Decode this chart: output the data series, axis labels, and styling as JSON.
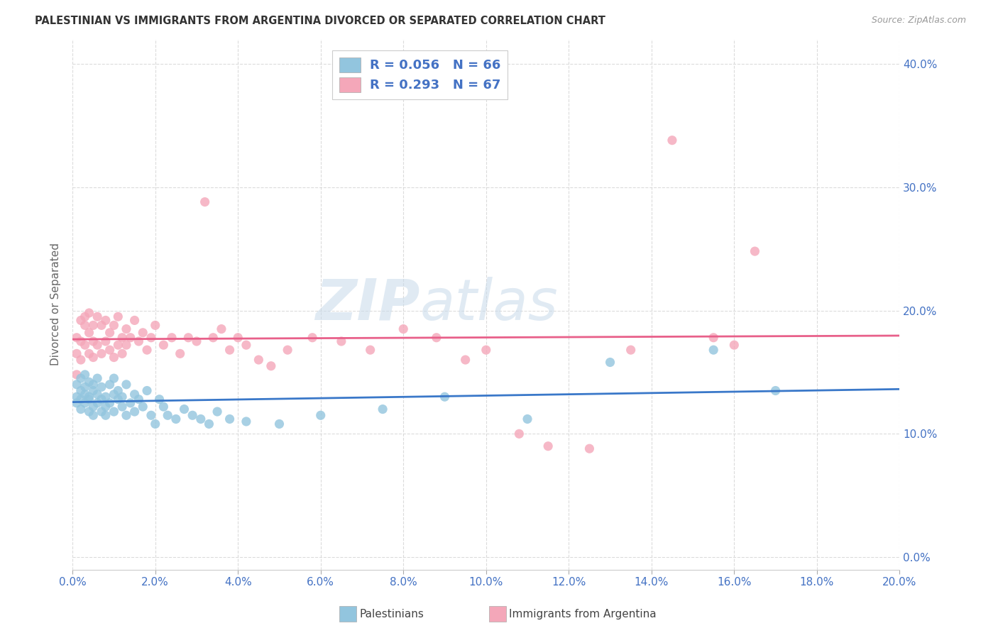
{
  "title": "PALESTINIAN VS IMMIGRANTS FROM ARGENTINA DIVORCED OR SEPARATED CORRELATION CHART",
  "source": "Source: ZipAtlas.com",
  "ylabel": "Divorced or Separated",
  "xlabel_palestinians": "Palestinians",
  "xlabel_argentina": "Immigrants from Argentina",
  "xlim": [
    0.0,
    0.2
  ],
  "ylim": [
    -0.01,
    0.42
  ],
  "xticks": [
    0.0,
    0.02,
    0.04,
    0.06,
    0.08,
    0.1,
    0.12,
    0.14,
    0.16,
    0.18,
    0.2
  ],
  "yticks": [
    0.0,
    0.1,
    0.2,
    0.3,
    0.4
  ],
  "legend_r1": "R = 0.056",
  "legend_n1": "N = 66",
  "legend_r2": "R = 0.293",
  "legend_n2": "N = 67",
  "color_blue": "#92c5de",
  "color_pink": "#f4a7b9",
  "line_color_blue": "#3a78c9",
  "line_color_pink": "#e8608a",
  "watermark": "ZIPatlas",
  "background": "#ffffff",
  "grid_color": "#d8d8d8",
  "palestinians_x": [
    0.001,
    0.001,
    0.001,
    0.002,
    0.002,
    0.002,
    0.002,
    0.003,
    0.003,
    0.003,
    0.003,
    0.004,
    0.004,
    0.004,
    0.004,
    0.005,
    0.005,
    0.005,
    0.005,
    0.006,
    0.006,
    0.006,
    0.007,
    0.007,
    0.007,
    0.008,
    0.008,
    0.008,
    0.009,
    0.009,
    0.01,
    0.01,
    0.01,
    0.011,
    0.011,
    0.012,
    0.012,
    0.013,
    0.013,
    0.014,
    0.015,
    0.015,
    0.016,
    0.017,
    0.018,
    0.019,
    0.02,
    0.021,
    0.022,
    0.023,
    0.025,
    0.027,
    0.029,
    0.031,
    0.033,
    0.035,
    0.038,
    0.042,
    0.05,
    0.06,
    0.075,
    0.09,
    0.11,
    0.13,
    0.155,
    0.17
  ],
  "palestinians_y": [
    0.14,
    0.13,
    0.125,
    0.135,
    0.128,
    0.145,
    0.12,
    0.138,
    0.132,
    0.125,
    0.148,
    0.13,
    0.118,
    0.142,
    0.128,
    0.135,
    0.122,
    0.14,
    0.115,
    0.132,
    0.125,
    0.145,
    0.118,
    0.138,
    0.128,
    0.13,
    0.122,
    0.115,
    0.14,
    0.125,
    0.132,
    0.118,
    0.145,
    0.128,
    0.135,
    0.122,
    0.13,
    0.115,
    0.14,
    0.125,
    0.132,
    0.118,
    0.128,
    0.122,
    0.135,
    0.115,
    0.108,
    0.128,
    0.122,
    0.115,
    0.112,
    0.12,
    0.115,
    0.112,
    0.108,
    0.118,
    0.112,
    0.11,
    0.108,
    0.115,
    0.12,
    0.13,
    0.112,
    0.158,
    0.168,
    0.135
  ],
  "argentina_x": [
    0.001,
    0.001,
    0.001,
    0.002,
    0.002,
    0.002,
    0.003,
    0.003,
    0.003,
    0.004,
    0.004,
    0.004,
    0.005,
    0.005,
    0.005,
    0.006,
    0.006,
    0.007,
    0.007,
    0.008,
    0.008,
    0.009,
    0.009,
    0.01,
    0.01,
    0.011,
    0.011,
    0.012,
    0.012,
    0.013,
    0.013,
    0.014,
    0.015,
    0.016,
    0.017,
    0.018,
    0.019,
    0.02,
    0.022,
    0.024,
    0.026,
    0.028,
    0.03,
    0.032,
    0.034,
    0.036,
    0.038,
    0.04,
    0.042,
    0.045,
    0.048,
    0.052,
    0.058,
    0.065,
    0.072,
    0.08,
    0.088,
    0.095,
    0.1,
    0.108,
    0.115,
    0.125,
    0.135,
    0.145,
    0.155,
    0.16,
    0.165
  ],
  "argentina_y": [
    0.148,
    0.165,
    0.178,
    0.175,
    0.192,
    0.16,
    0.188,
    0.172,
    0.195,
    0.182,
    0.165,
    0.198,
    0.175,
    0.188,
    0.162,
    0.195,
    0.172,
    0.188,
    0.165,
    0.192,
    0.175,
    0.182,
    0.168,
    0.188,
    0.162,
    0.195,
    0.172,
    0.178,
    0.165,
    0.185,
    0.172,
    0.178,
    0.192,
    0.175,
    0.182,
    0.168,
    0.178,
    0.188,
    0.172,
    0.178,
    0.165,
    0.178,
    0.175,
    0.288,
    0.178,
    0.185,
    0.168,
    0.178,
    0.172,
    0.16,
    0.155,
    0.168,
    0.178,
    0.175,
    0.168,
    0.185,
    0.178,
    0.16,
    0.168,
    0.1,
    0.09,
    0.088,
    0.168,
    0.338,
    0.178,
    0.172,
    0.248
  ]
}
